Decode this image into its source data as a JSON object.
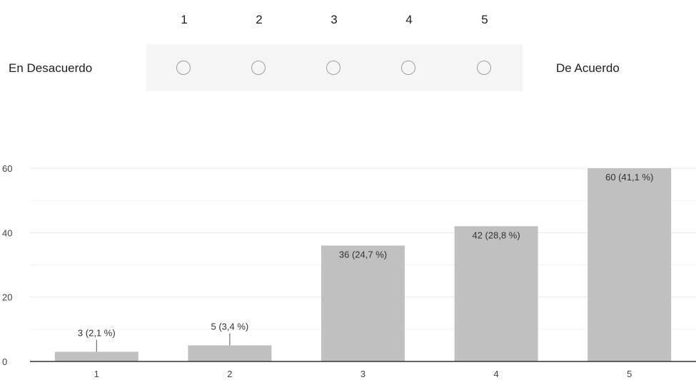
{
  "question": {
    "scale_numbers": [
      "1",
      "2",
      "3",
      "4",
      "5"
    ],
    "low_label": "En Desacuerdo",
    "high_label": "De Acuerdo"
  },
  "colors": {
    "bar": "#c0c0c0",
    "grid": "#e8e8e8",
    "axis": "#333333",
    "radio_border": "#9e9e9e",
    "scale_background": "#f5f5f5"
  },
  "chart_data": {
    "type": "bar",
    "categories": [
      "1",
      "2",
      "3",
      "4",
      "5"
    ],
    "values": [
      3,
      5,
      36,
      42,
      60
    ],
    "data_labels": [
      "3 (2,1 %)",
      "5 (3,4 %)",
      "36 (24,7 %)",
      "42 (28,8 %)",
      "60 (41,1 %)"
    ],
    "yticks": [
      0,
      20,
      40,
      60
    ],
    "ylim": [
      0,
      60
    ],
    "grid": true,
    "title": "",
    "xlabel": "",
    "ylabel": ""
  }
}
